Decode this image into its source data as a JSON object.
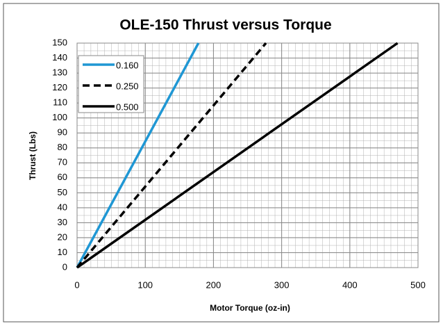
{
  "chart_data": {
    "type": "line",
    "title": "OLE-150 Thrust versus Torque",
    "xlabel": "Motor Torque (oz-in)",
    "ylabel": "Thrust (Lbs)",
    "series": [
      {
        "name": "0.160",
        "color": "#1f97d4",
        "dash": false,
        "x": [
          0,
          178
        ],
        "values": [
          0,
          150
        ]
      },
      {
        "name": "0.250",
        "color": "#000000",
        "dash": true,
        "x": [
          0,
          277
        ],
        "values": [
          0,
          150
        ]
      },
      {
        "name": "0.500",
        "color": "#000000",
        "dash": false,
        "x": [
          0,
          470
        ],
        "values": [
          0,
          150
        ]
      }
    ],
    "xlim": [
      0,
      500
    ],
    "xticks": [
      0,
      100,
      200,
      300,
      400,
      500
    ],
    "ylim": [
      0,
      150
    ],
    "yticks": [
      0,
      10,
      20,
      30,
      40,
      50,
      60,
      70,
      80,
      90,
      100,
      110,
      120,
      130,
      140,
      150
    ],
    "grid": true,
    "legend": "upper left"
  }
}
